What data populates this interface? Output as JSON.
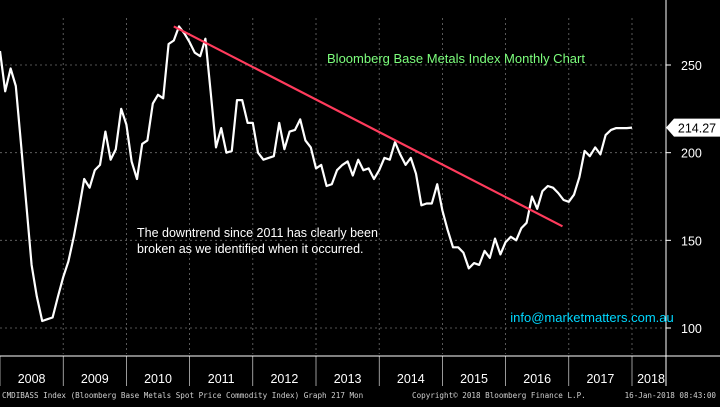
{
  "chart_data": {
    "type": "line",
    "title": "Bloomberg Base Metals Index Monthly Chart",
    "x_labels": [
      "2008",
      "2009",
      "2010",
      "2011",
      "2012",
      "2013",
      "2014",
      "2015",
      "2016",
      "2017",
      "2018"
    ],
    "y_ticks": [
      100,
      150,
      200,
      250
    ],
    "ylim": [
      90,
      285
    ],
    "grid": true,
    "last_value_label": "214.27",
    "annotation": "The downtrend since 2011 has clearly been broken as we identified when it occurred.",
    "website": "info@marketmatters.com.au",
    "series": [
      {
        "x": [
          2008.0,
          2008.083,
          2008.167,
          2008.25,
          2008.333,
          2008.417,
          2008.5,
          2008.583,
          2008.667,
          2008.75,
          2008.833,
          2008.917,
          2009.0,
          2009.083,
          2009.167,
          2009.25,
          2009.333,
          2009.417,
          2009.5,
          2009.583,
          2009.667,
          2009.75,
          2009.833,
          2009.917,
          2010.0,
          2010.083,
          2010.167,
          2010.25,
          2010.333,
          2010.417,
          2010.5,
          2010.583,
          2010.667,
          2010.75,
          2010.833,
          2010.917,
          2011.0,
          2011.083,
          2011.167,
          2011.25,
          2011.333,
          2011.417,
          2011.5,
          2011.583,
          2011.667,
          2011.75,
          2011.833,
          2011.917,
          2012.0,
          2012.083,
          2012.167,
          2012.25,
          2012.333,
          2012.417,
          2012.5,
          2012.583,
          2012.667,
          2012.75,
          2012.833,
          2012.917,
          2013.0,
          2013.083,
          2013.167,
          2013.25,
          2013.333,
          2013.417,
          2013.5,
          2013.583,
          2013.667,
          2013.75,
          2013.833,
          2013.917,
          2014.0,
          2014.083,
          2014.167,
          2014.25,
          2014.333,
          2014.417,
          2014.5,
          2014.583,
          2014.667,
          2014.75,
          2014.833,
          2014.917,
          2015.0,
          2015.083,
          2015.167,
          2015.25,
          2015.333,
          2015.417,
          2015.5,
          2015.583,
          2015.667,
          2015.75,
          2015.833,
          2015.917,
          2016.0,
          2016.083,
          2016.167,
          2016.25,
          2016.333,
          2016.417,
          2016.5,
          2016.583,
          2016.667,
          2016.75,
          2016.833,
          2016.917,
          2017.0,
          2017.083,
          2017.167,
          2017.25,
          2017.333,
          2017.417,
          2017.5,
          2017.583,
          2017.667,
          2017.75,
          2017.833,
          2017.917,
          2018.0
        ],
        "y": [
          258,
          235,
          248,
          238,
          205,
          170,
          136,
          118,
          104,
          105,
          106,
          118,
          129,
          138,
          152,
          168,
          185,
          180,
          190,
          193,
          212,
          196,
          202,
          225,
          216,
          195,
          185,
          205,
          207,
          228,
          233,
          231,
          262,
          264,
          272,
          268,
          263,
          257,
          255,
          265,
          235,
          203,
          214,
          200,
          201,
          230,
          230,
          217,
          217,
          200,
          196,
          197,
          198,
          217,
          202,
          212,
          213,
          219,
          207,
          203,
          191,
          193,
          181,
          182,
          190,
          193,
          195,
          187,
          196,
          190,
          191,
          185,
          190,
          197,
          196,
          206,
          199,
          193,
          197,
          188,
          170,
          171,
          171,
          182,
          167,
          156,
          146,
          146,
          143,
          134,
          137,
          136,
          144,
          140,
          151,
          142,
          149,
          152,
          150,
          157,
          160,
          175,
          168,
          178,
          181,
          180,
          177,
          173,
          172,
          176,
          186,
          201,
          198,
          203,
          199,
          210,
          213,
          214,
          214,
          214,
          214.27
        ]
      }
    ],
    "trendline": {
      "x": [
        2010.75,
        2016.9
      ],
      "y": [
        272,
        158
      ]
    },
    "colors": {
      "background": "#000000",
      "line": "#ffffff",
      "trendline": "#ff3b5c",
      "title": "#7dff7d",
      "website": "#00d8ff",
      "grid": "#6e6e6e",
      "last_value_box": "#ffffff"
    }
  },
  "footer": {
    "left": "CMDIBASS Index (Bloomberg Base Metals Spot Price Commodity Index) Graph 217  Mon",
    "center": "Copyright© 2018 Bloomberg Finance L.P.",
    "right": "16-Jan-2018 08:43:00"
  }
}
